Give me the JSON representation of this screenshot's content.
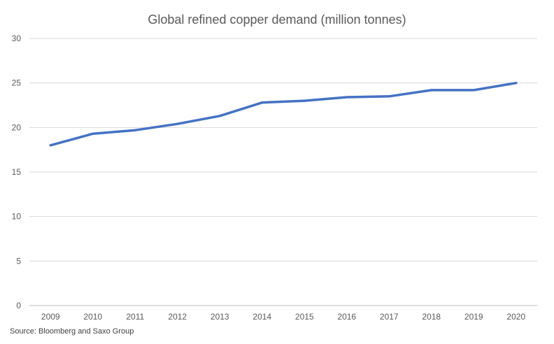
{
  "chart_data": {
    "type": "line",
    "title": "Global refined copper demand (million tonnes)",
    "xlabel": "",
    "ylabel": "",
    "categories": [
      "2009",
      "2010",
      "2011",
      "2012",
      "2013",
      "2014",
      "2015",
      "2016",
      "2017",
      "2018",
      "2019",
      "2020"
    ],
    "series": [
      {
        "name": "Global refined copper demand",
        "values": [
          18.0,
          19.3,
          19.7,
          20.4,
          21.3,
          22.8,
          23.0,
          23.4,
          23.5,
          24.2,
          24.2,
          25.0
        ],
        "color": "#4472c4"
      }
    ],
    "yticks": [
      0,
      5,
      10,
      15,
      20,
      25,
      30
    ],
    "ylim": [
      0,
      30
    ],
    "grid": true,
    "legend": "none"
  },
  "source": "Source: Bloomberg and Saxo Group"
}
